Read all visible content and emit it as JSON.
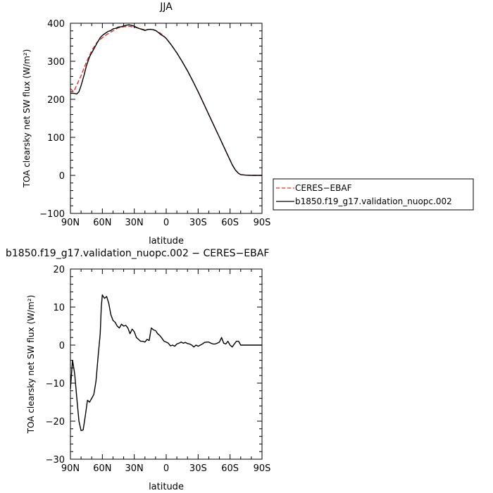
{
  "chart_data": [
    {
      "type": "line",
      "title": "JJA",
      "xlabel": "latitude",
      "ylabel": "TOA clearsky net SW flux (W/m²)",
      "xlim": [
        90,
        -90
      ],
      "ylim": [
        -100,
        400
      ],
      "x_ticks": [
        90,
        60,
        30,
        0,
        -30,
        -60,
        -90
      ],
      "x_tick_labels": [
        "90N",
        "60N",
        "30N",
        "0",
        "30S",
        "60S",
        "90S"
      ],
      "y_ticks": [
        -100,
        0,
        100,
        200,
        300,
        400
      ],
      "y_tick_labels": [
        "−100",
        "0",
        "100",
        "200",
        "300",
        "400"
      ],
      "legend_position": "right",
      "series": [
        {
          "name": "CERES−EBAF",
          "color": "#e8302a",
          "dash": "dashed",
          "x": [
            90,
            87,
            85,
            80,
            75,
            70,
            65,
            60,
            55,
            50,
            45,
            40,
            35,
            30,
            25,
            20,
            15,
            10,
            5,
            0,
            -5,
            -10,
            -15,
            -20,
            -25,
            -30,
            -35,
            -40,
            -45,
            -50,
            -55,
            -60,
            -62,
            -65,
            -68,
            -70,
            -75,
            -80,
            -85,
            -90
          ],
          "y": [
            228,
            220,
            232,
            262,
            298,
            328,
            350,
            362,
            372,
            380,
            388,
            391,
            392,
            390,
            386,
            383,
            384,
            381,
            373,
            360,
            342,
            322,
            299,
            275,
            248,
            220,
            190,
            160,
            130,
            100,
            70,
            40,
            28,
            14,
            5,
            2,
            0.5,
            0,
            0,
            0
          ]
        },
        {
          "name": "b1850.f19_g17.validation_nuopc.002",
          "color": "#000000",
          "dash": "solid",
          "x": [
            90,
            87,
            84,
            82,
            80,
            77,
            75,
            72,
            70,
            68,
            65,
            62,
            60,
            57,
            55,
            52,
            50,
            47,
            45,
            42,
            40,
            37,
            35,
            32,
            30,
            28,
            25,
            22,
            20,
            18,
            15,
            12,
            10,
            8,
            5,
            2,
            0,
            -5,
            -10,
            -15,
            -20,
            -25,
            -30,
            -35,
            -40,
            -45,
            -50,
            -55,
            -60,
            -62,
            -65,
            -68,
            -70,
            -75,
            -80,
            -85,
            -90
          ],
          "y": [
            216,
            216,
            214,
            220,
            236,
            265,
            288,
            312,
            322,
            332,
            348,
            362,
            368,
            374,
            378,
            381,
            385,
            387,
            390,
            391,
            393,
            395,
            396,
            394,
            392,
            389,
            386,
            383,
            381,
            383,
            384,
            383,
            381,
            377,
            370,
            365,
            360,
            342,
            322,
            299,
            275,
            248,
            220,
            190,
            160,
            130,
            100,
            70,
            40,
            28,
            14,
            5,
            2,
            0.5,
            0,
            0,
            0
          ]
        }
      ]
    },
    {
      "type": "line",
      "title": "b1850.f19_g17.validation_nuopc.002 − CERES−EBAF",
      "xlabel": "latitude",
      "ylabel": "TOA clearsky net SW flux (W/m²)",
      "xlim": [
        90,
        -90
      ],
      "ylim": [
        -30,
        20
      ],
      "x_ticks": [
        90,
        60,
        30,
        0,
        -30,
        -60,
        -90
      ],
      "x_tick_labels": [
        "90N",
        "60N",
        "30N",
        "0",
        "30S",
        "60S",
        "90S"
      ],
      "y_ticks": [
        -30,
        -20,
        -10,
        0,
        10,
        20
      ],
      "y_tick_labels": [
        "−30",
        "−20",
        "−10",
        "0",
        "10",
        "20"
      ],
      "series": [
        {
          "color": "#000000",
          "dash": "solid",
          "x": [
            90,
            88,
            86,
            84,
            82,
            80,
            78,
            76,
            74,
            72,
            70,
            68,
            66,
            64,
            63,
            62,
            61,
            60,
            58,
            56,
            54,
            52,
            50,
            48,
            46,
            44,
            42,
            40,
            38,
            36,
            34,
            32,
            30,
            28,
            26,
            24,
            22,
            20,
            18,
            16,
            14,
            12,
            10,
            8,
            6,
            4,
            2,
            0,
            -2,
            -4,
            -6,
            -8,
            -10,
            -12,
            -14,
            -16,
            -18,
            -20,
            -22,
            -24,
            -26,
            -28,
            -30,
            -32,
            -34,
            -36,
            -38,
            -40,
            -42,
            -44,
            -46,
            -48,
            -50,
            -52,
            -54,
            -56,
            -58,
            -60,
            -62,
            -64,
            -66,
            -68,
            -70,
            -72,
            -74,
            -76,
            -78,
            -80,
            -82,
            -84,
            -86,
            -88,
            -90
          ],
          "y": [
            -11.5,
            -4.0,
            -7.5,
            -14.0,
            -20.0,
            -22.5,
            -22.3,
            -18.5,
            -14.5,
            -15.0,
            -14.0,
            -13.0,
            -9.5,
            -3.0,
            0.0,
            3.0,
            10.0,
            13.2,
            12.3,
            12.8,
            11.0,
            8.0,
            6.5,
            6.0,
            5.0,
            4.5,
            5.5,
            5.0,
            5.2,
            4.5,
            3.0,
            4.2,
            3.5,
            2.0,
            1.5,
            1.0,
            1.0,
            0.8,
            1.5,
            1.2,
            4.5,
            4.0,
            3.8,
            3.0,
            2.5,
            1.8,
            1.0,
            0.8,
            0.5,
            -0.2,
            0.0,
            -0.3,
            0.3,
            0.5,
            0.8,
            0.5,
            0.7,
            0.4,
            0.3,
            0.0,
            -0.5,
            0.0,
            -0.3,
            0.0,
            0.3,
            0.7,
            0.8,
            0.8,
            0.5,
            0.3,
            0.3,
            0.5,
            0.8,
            2.0,
            0.5,
            0.3,
            1.0,
            0.0,
            -0.5,
            0.3,
            1.0,
            1.0,
            0.0,
            0.0,
            0.0,
            0.0,
            0.0,
            0.0,
            0.0,
            0.0,
            0.0,
            0.0,
            0.0
          ]
        }
      ]
    }
  ]
}
